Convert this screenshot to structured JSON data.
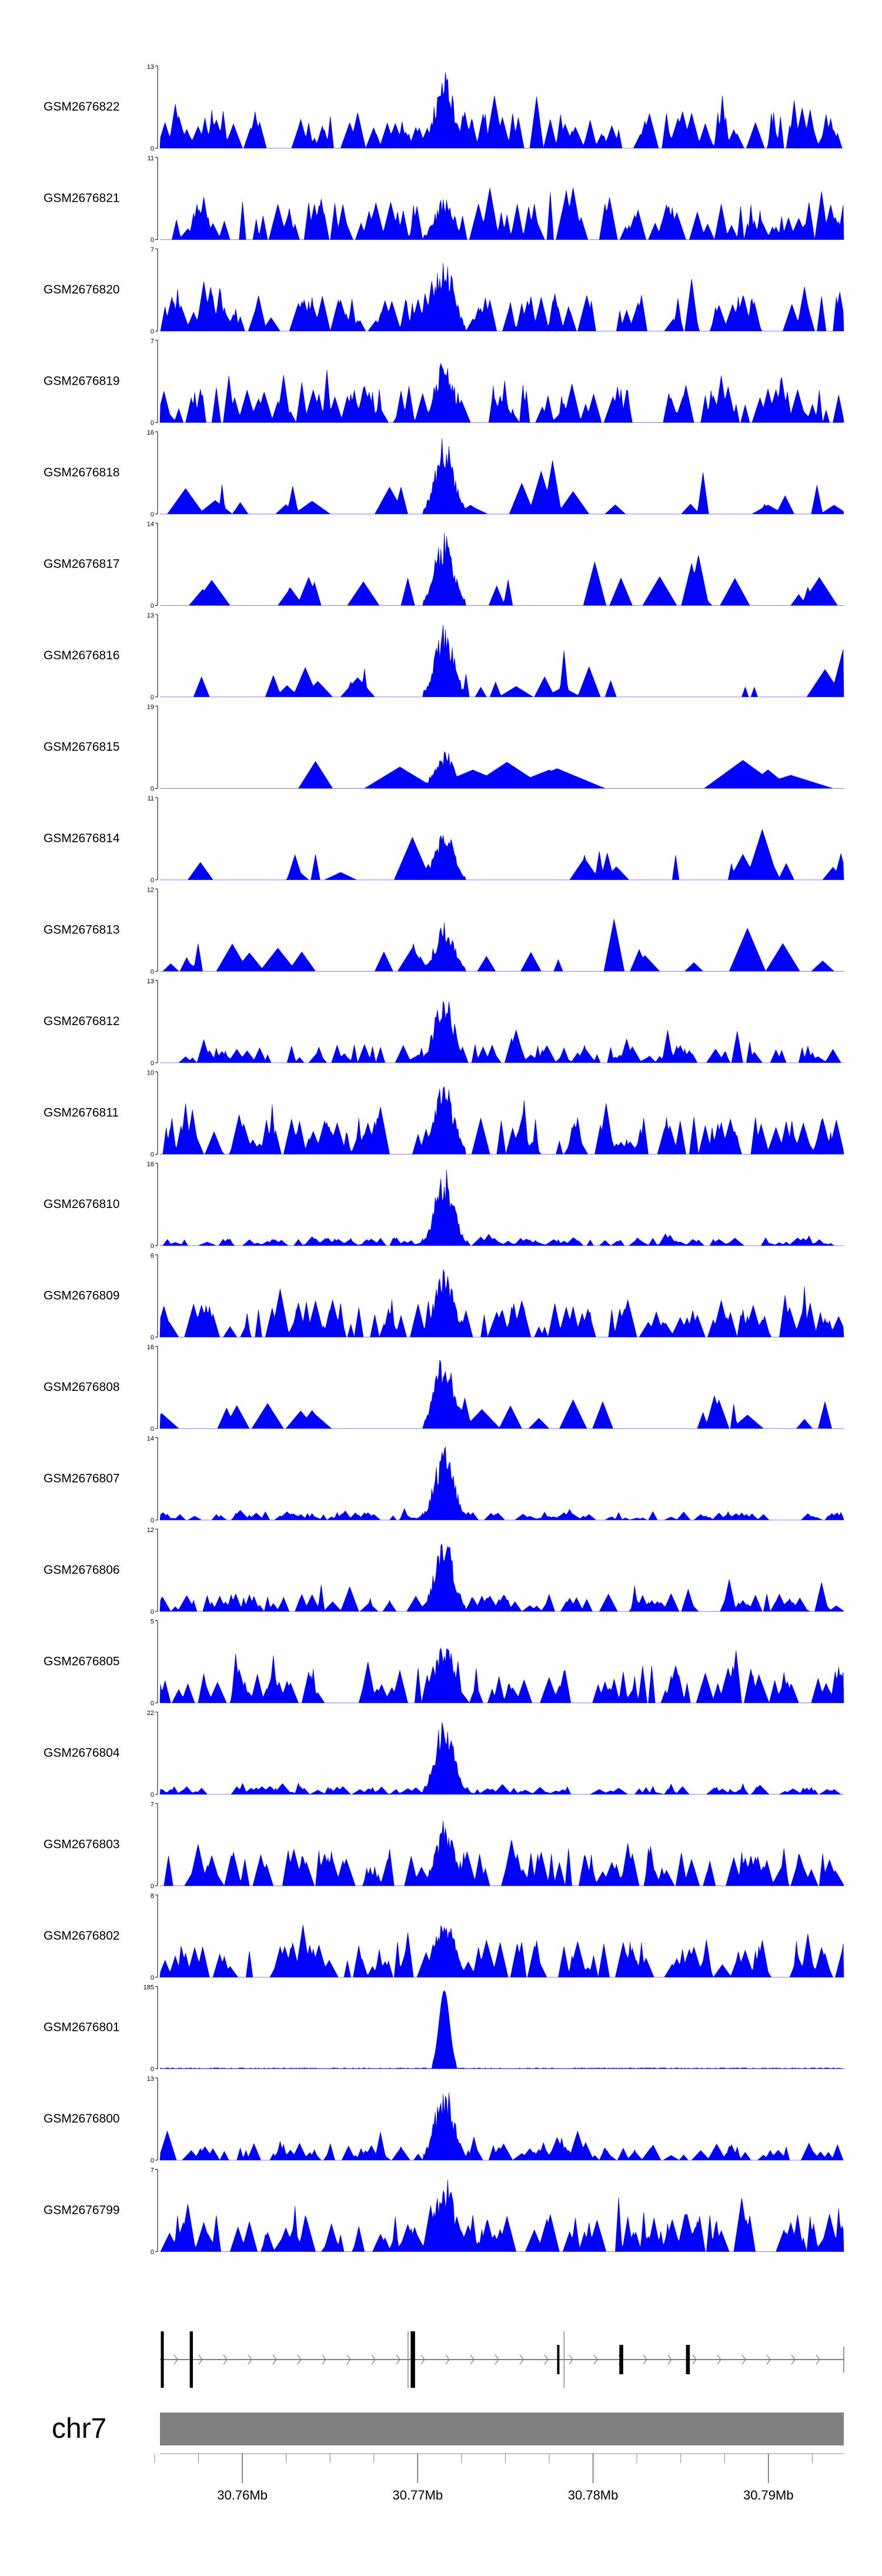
{
  "colors": {
    "area": "#0000ff",
    "axis": "#000000",
    "ideogram": "#808080",
    "gene": "#000000"
  },
  "chart_data": {
    "type": "area",
    "title": "",
    "chromosome": "chr7",
    "xlim": [
      30.7553,
      30.7943
    ],
    "xunit": "Mb",
    "x_ticks": [
      30.76,
      30.77,
      30.78,
      30.79
    ],
    "x_tick_labels": [
      "30.76Mb",
      "30.77Mb",
      "30.78Mb",
      "30.79Mb"
    ],
    "x_minor_ticks": [
      30.755,
      30.7575,
      30.76,
      30.7625,
      30.765,
      30.7675,
      30.77,
      30.7725,
      30.775,
      30.7775,
      30.78,
      30.7825,
      30.785,
      30.7875,
      30.79,
      30.7925
    ],
    "peak_center": 30.7715,
    "tracks": [
      {
        "name": "GSM2676822",
        "ymax": 13,
        "ymax_label": "13",
        "ymin_label": "0",
        "seed": 22,
        "style": "dense",
        "peak": 0.95
      },
      {
        "name": "GSM2676821",
        "ymax": 11,
        "ymax_label": "11",
        "ymin_label": "0",
        "seed": 21,
        "style": "dense",
        "peak": 0.55
      },
      {
        "name": "GSM2676820",
        "ymax": 7,
        "ymax_label": "7",
        "ymin_label": "0",
        "seed": 20,
        "style": "dense",
        "peak": 0.95
      },
      {
        "name": "GSM2676819",
        "ymax": 7,
        "ymax_label": "7",
        "ymin_label": "0",
        "seed": 19,
        "style": "dense",
        "peak": 0.8
      },
      {
        "name": "GSM2676818",
        "ymax": 16,
        "ymax_label": "16",
        "ymin_label": "0",
        "seed": 18,
        "style": "sparse",
        "peak": 0.95
      },
      {
        "name": "GSM2676817",
        "ymax": 14,
        "ymax_label": "14",
        "ymin_label": "0",
        "seed": 17,
        "style": "sparse",
        "peak": 0.9
      },
      {
        "name": "GSM2676816",
        "ymax": 13,
        "ymax_label": "13",
        "ymin_label": "0",
        "seed": 16,
        "style": "sparse",
        "peak": 0.9
      },
      {
        "name": "GSM2676815",
        "ymax": 19,
        "ymax_label": "19",
        "ymin_label": "0",
        "seed": 15,
        "style": "verysparse",
        "peak": 0.5
      },
      {
        "name": "GSM2676814",
        "ymax": 11,
        "ymax_label": "11",
        "ymin_label": "0",
        "seed": 14,
        "style": "sparse",
        "peak": 0.6
      },
      {
        "name": "GSM2676813",
        "ymax": 12,
        "ymax_label": "12",
        "ymin_label": "0",
        "seed": 13,
        "style": "sparse",
        "peak": 0.6
      },
      {
        "name": "GSM2676812",
        "ymax": 13,
        "ymax_label": "13",
        "ymin_label": "0",
        "seed": 12,
        "style": "mediumpeak",
        "peak": 0.95
      },
      {
        "name": "GSM2676811",
        "ymax": 10,
        "ymax_label": "10",
        "ymin_label": "0",
        "seed": 11,
        "style": "dense",
        "peak": 0.95
      },
      {
        "name": "GSM2676810",
        "ymax": 18,
        "ymax_label": "18",
        "ymin_label": "0",
        "seed": 10,
        "style": "lowpeak",
        "peak": 0.95
      },
      {
        "name": "GSM2676809",
        "ymax": 6,
        "ymax_label": "6",
        "ymin_label": "0",
        "seed": 9,
        "style": "dense",
        "peak": 0.85
      },
      {
        "name": "GSM2676808",
        "ymax": 16,
        "ymax_label": "16",
        "ymin_label": "0",
        "seed": 8,
        "style": "sparse",
        "peak": 0.95
      },
      {
        "name": "GSM2676807",
        "ymax": 14,
        "ymax_label": "14",
        "ymin_label": "0",
        "seed": 7,
        "style": "lowpeak",
        "peak": 0.95
      },
      {
        "name": "GSM2676806",
        "ymax": 12,
        "ymax_label": "12",
        "ymin_label": "0",
        "seed": 6,
        "style": "mediumpeak",
        "peak": 0.95
      },
      {
        "name": "GSM2676805",
        "ymax": 5,
        "ymax_label": "5",
        "ymin_label": "0",
        "seed": 5,
        "style": "dense",
        "peak": 0.8
      },
      {
        "name": "GSM2676804",
        "ymax": 22,
        "ymax_label": "22",
        "ymin_label": "0",
        "seed": 4,
        "style": "lowpeak",
        "peak": 0.95
      },
      {
        "name": "GSM2676803",
        "ymax": 7,
        "ymax_label": "7",
        "ymin_label": "0",
        "seed": 3,
        "style": "dense",
        "peak": 0.8
      },
      {
        "name": "GSM2676802",
        "ymax": 8,
        "ymax_label": "8",
        "ymin_label": "0",
        "seed": 2,
        "style": "dense",
        "peak": 0.85
      },
      {
        "name": "GSM2676801",
        "ymax": 185,
        "ymax_label": "185",
        "ymin_label": "0",
        "seed": 1,
        "style": "spike",
        "peak": 0.95
      },
      {
        "name": "GSM2676800",
        "ymax": 13,
        "ymax_label": "13",
        "ymin_label": "0",
        "seed": 100,
        "style": "mediumpeak",
        "peak": 0.95
      },
      {
        "name": "GSM2676799",
        "ymax": 7,
        "ymax_label": "7",
        "ymin_label": "0",
        "seed": 99,
        "style": "dense",
        "peak": 0.95
      }
    ],
    "gene_track": {
      "strand": "+",
      "exons": [
        {
          "start": 30.75535,
          "end": 30.75552,
          "tall": true
        },
        {
          "start": 30.757,
          "end": 30.75718,
          "tall": true
        },
        {
          "start": 30.7696,
          "end": 30.76985,
          "tall": true
        },
        {
          "start": 30.77795,
          "end": 30.77808,
          "tall": false
        },
        {
          "start": 30.7815,
          "end": 30.78172,
          "tall": false
        },
        {
          "start": 30.7853,
          "end": 30.78552,
          "tall": false
        }
      ],
      "exon_outlines": [
        30.76945,
        30.77835
      ]
    }
  }
}
